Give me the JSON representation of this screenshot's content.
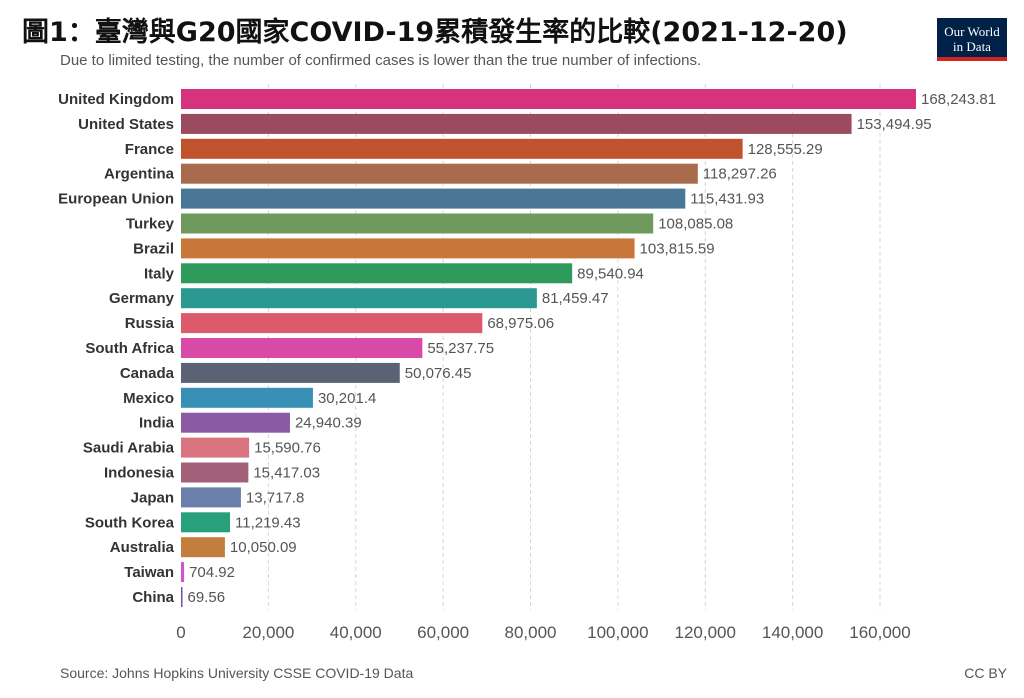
{
  "title": "圖1：臺灣與G20國家COVID-19累積發生率的比較(2021-12-20)",
  "subtitle": "Due to limited testing, the number of confirmed cases is lower than the true number of infections.",
  "logo": {
    "line1": "Our World",
    "line2": "in Data"
  },
  "source": "Source: Johns Hopkins University CSSE COVID-19 Data",
  "license": "CC BY",
  "chart_data": {
    "type": "bar",
    "orientation": "horizontal",
    "xlim": [
      0,
      170000
    ],
    "ticks": [
      0,
      20000,
      40000,
      60000,
      80000,
      100000,
      120000,
      140000,
      160000
    ],
    "tick_labels": [
      "0",
      "20,000",
      "40,000",
      "60,000",
      "80,000",
      "100,000",
      "120,000",
      "140,000",
      "160,000"
    ],
    "grid": true,
    "bars": [
      {
        "label": "United Kingdom",
        "value": 168243.81,
        "value_label": "168,243.81",
        "color": "#d6327d"
      },
      {
        "label": "United States",
        "value": 153494.95,
        "value_label": "153,494.95",
        "color": "#9a4b5e"
      },
      {
        "label": "France",
        "value": 128555.29,
        "value_label": "128,555.29",
        "color": "#c0522d"
      },
      {
        "label": "Argentina",
        "value": 118297.26,
        "value_label": "118,297.26",
        "color": "#a86c4c"
      },
      {
        "label": "European Union",
        "value": 115431.93,
        "value_label": "115,431.93",
        "color": "#4a7696"
      },
      {
        "label": "Turkey",
        "value": 108085.08,
        "value_label": "108,085.08",
        "color": "#6f9a5e"
      },
      {
        "label": "Brazil",
        "value": 103815.59,
        "value_label": "103,815.59",
        "color": "#c8763a"
      },
      {
        "label": "Italy",
        "value": 89540.94,
        "value_label": "89,540.94",
        "color": "#2e9a5c"
      },
      {
        "label": "Germany",
        "value": 81459.47,
        "value_label": "81,459.47",
        "color": "#2b9891"
      },
      {
        "label": "Russia",
        "value": 68975.06,
        "value_label": "68,975.06",
        "color": "#dd5a6b"
      },
      {
        "label": "South Africa",
        "value": 55237.75,
        "value_label": "55,237.75",
        "color": "#d94aa8"
      },
      {
        "label": "Canada",
        "value": 50076.45,
        "value_label": "50,076.45",
        "color": "#5a6374"
      },
      {
        "label": "Mexico",
        "value": 30201.4,
        "value_label": "30,201.4",
        "color": "#3a8fb5"
      },
      {
        "label": "India",
        "value": 24940.39,
        "value_label": "24,940.39",
        "color": "#8a5aa5"
      },
      {
        "label": "Saudi Arabia",
        "value": 15590.76,
        "value_label": "15,590.76",
        "color": "#d8737f"
      },
      {
        "label": "Indonesia",
        "value": 15417.03,
        "value_label": "15,417.03",
        "color": "#a36079"
      },
      {
        "label": "Japan",
        "value": 13717.8,
        "value_label": "13,717.8",
        "color": "#6b7fab"
      },
      {
        "label": "South Korea",
        "value": 11219.43,
        "value_label": "11,219.43",
        "color": "#28a07c"
      },
      {
        "label": "Australia",
        "value": 10050.09,
        "value_label": "10,050.09",
        "color": "#c37d3c"
      },
      {
        "label": "Taiwan",
        "value": 704.92,
        "value_label": "704.92",
        "color": "#d154c9"
      },
      {
        "label": "China",
        "value": 69.56,
        "value_label": "69.56",
        "color": "#7a4ea0"
      }
    ]
  }
}
